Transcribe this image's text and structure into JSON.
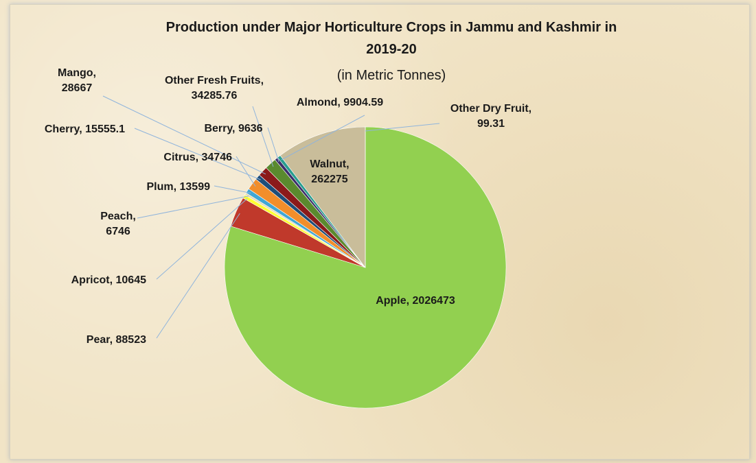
{
  "chart_data": {
    "type": "pie",
    "title": "Production under Major Horticulture Crops in Jammu and Kashmir in",
    "title_line2": "2019-20",
    "subtitle": "(in Metric Tonnes)",
    "legend": "none",
    "slices": [
      {
        "name": "Apple",
        "label": "Apple, 2026473",
        "value": 2026473,
        "color": "#92d050"
      },
      {
        "name": "Pear",
        "label": "Pear, 88523",
        "value": 88523,
        "color": "#c0392b"
      },
      {
        "name": "Apricot",
        "label": "Apricot, 10645",
        "value": 10645,
        "color": "#ffff33"
      },
      {
        "name": "Peach",
        "label": "Peach, 6746",
        "value": 6746,
        "color": "#e8dcb8"
      },
      {
        "name": "Plum",
        "label": "Plum, 13599",
        "value": 13599,
        "color": "#3fa7d6"
      },
      {
        "name": "Citrus",
        "label": "Citrus, 34746",
        "value": 34746,
        "color": "#f28e2b"
      },
      {
        "name": "Cherry",
        "label": "Cherry, 15555.1",
        "value": 15555.1,
        "color": "#1f4e79"
      },
      {
        "name": "Mango",
        "label": "Mango, 28667",
        "value": 28667,
        "color": "#8b1a1a"
      },
      {
        "name": "Other Fresh Fruits",
        "label": "Other Fresh Fruits, 34285.76",
        "value": 34285.76,
        "color": "#5a8a2e"
      },
      {
        "name": "Berry",
        "label": "Berry, 9636",
        "value": 9636,
        "color": "#3d2e6b"
      },
      {
        "name": "Almond",
        "label": "Almond, 9904.59",
        "value": 9904.59,
        "color": "#2a9d8f"
      },
      {
        "name": "Walnut",
        "label": "Walnut, 262275",
        "value": 262275,
        "color": "#c9bd9a"
      },
      {
        "name": "Other Dry Fruit",
        "label": "Other Dry Fruit, 99.31",
        "value": 99.31,
        "color": "#c55a11"
      }
    ]
  }
}
